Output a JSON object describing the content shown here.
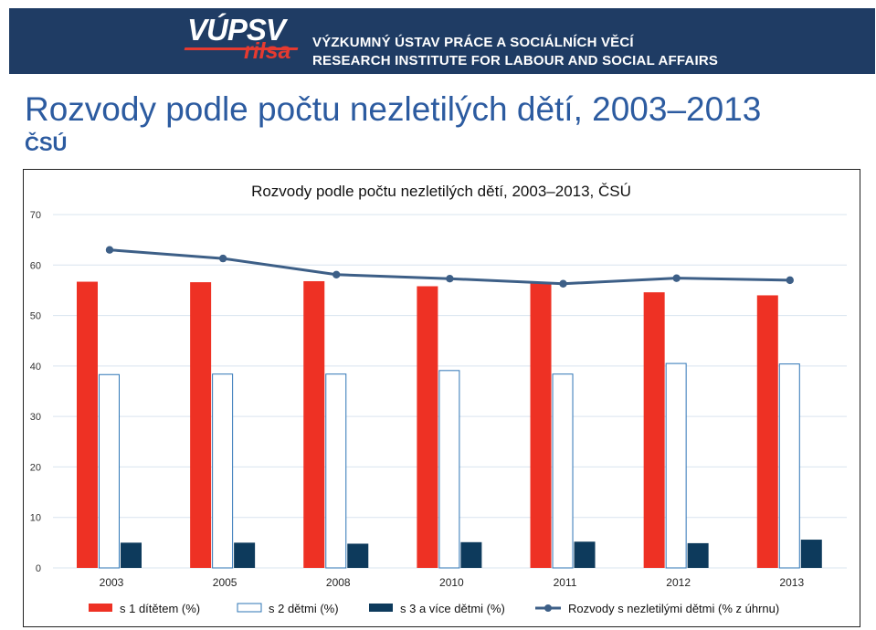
{
  "header": {
    "logo_top": "VÚPSV",
    "logo_bottom": "rilsa",
    "institute_cz": "VÝZKUMNÝ ÚSTAV PRÁCE A SOCIÁLNÍCH VĚCÍ",
    "institute_en": "RESEARCH INSTITUTE FOR LABOUR AND SOCIAL AFFAIRS"
  },
  "page": {
    "title": "Rozvody podle počtu nezletilých dětí, 2003–2013",
    "subtitle": "ČSÚ"
  },
  "colors": {
    "banner": "#1f3c64",
    "red": "#ee3124",
    "white_bar_border": "#2e75b6",
    "navy": "#0d3a5c",
    "line": "#3d5f87",
    "grid": "#d9e4ef",
    "title_blue": "#2c5ba0"
  },
  "chart_data": {
    "type": "bar",
    "title": "Rozvody podle počtu nezletilých dětí, 2003–2013, ČSÚ",
    "categories": [
      "2003",
      "2005",
      "2008",
      "2010",
      "2011",
      "2012",
      "2013"
    ],
    "ylim": [
      0,
      70
    ],
    "yticks": [
      "0",
      "10",
      "20",
      "30",
      "40",
      "50",
      "60",
      "70"
    ],
    "grid": true,
    "legend_position": "bottom",
    "series": [
      {
        "name": "s 1 dítětem (%)",
        "kind": "bar",
        "color": "#ee3124",
        "values": [
          56.7,
          56.6,
          56.8,
          55.8,
          56.4,
          54.6,
          54.0
        ]
      },
      {
        "name": "s 2 dětmi (%)",
        "kind": "bar",
        "color": "#ffffff",
        "values": [
          38.3,
          38.4,
          38.4,
          39.1,
          38.4,
          40.5,
          40.4
        ]
      },
      {
        "name": "s 3 a více dětmi (%)",
        "kind": "bar",
        "color": "#0d3a5c",
        "values": [
          5.0,
          5.0,
          4.8,
          5.1,
          5.2,
          4.9,
          5.6
        ]
      },
      {
        "name": "Rozvody s nezletilými dětmi (% z úhrnu)",
        "kind": "line",
        "color": "#3d5f87",
        "values": [
          63.0,
          61.3,
          58.1,
          57.3,
          56.3,
          57.4,
          57.0
        ]
      }
    ]
  }
}
